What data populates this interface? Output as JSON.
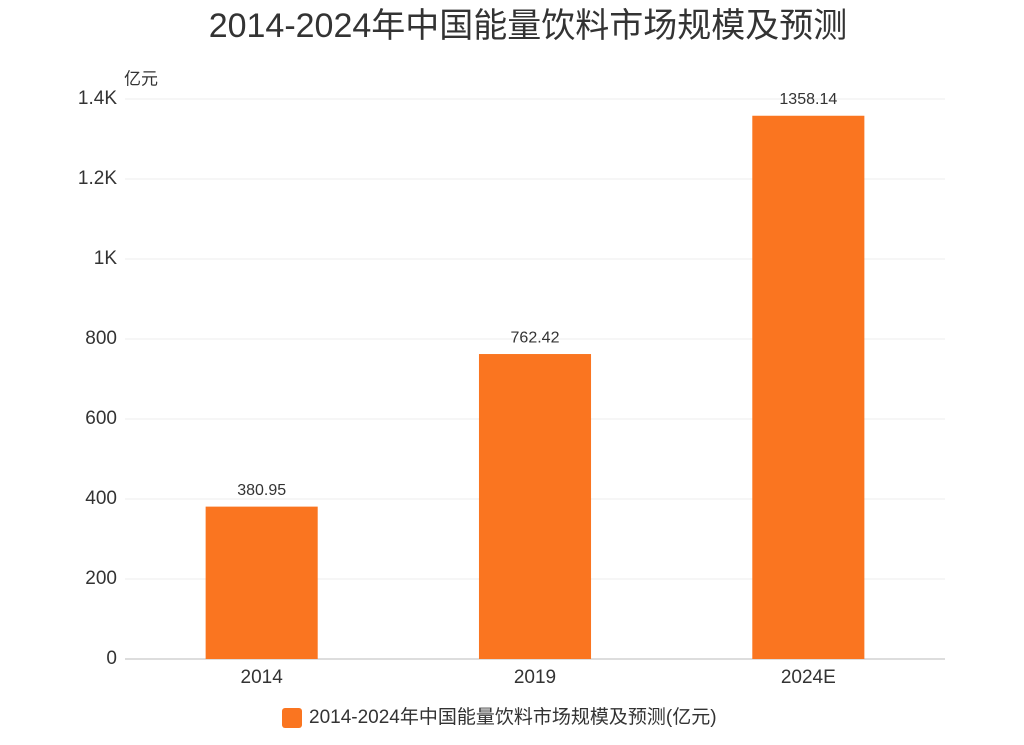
{
  "chart_data": {
    "type": "bar",
    "title": "2014-2024年中国能量饮料市场规模及预测",
    "y_label": "亿元",
    "categories": [
      "2014",
      "2019",
      "2024E"
    ],
    "series": [
      {
        "name": "2014-2024年中国能量饮料市场规模及预测(亿元)",
        "color": "#fa7520",
        "values": [
          380.95,
          762.42,
          1358.14
        ]
      }
    ],
    "ylim": [
      0,
      1400
    ],
    "yticks": [
      0,
      200,
      400,
      600,
      800,
      {
        "value": 1000,
        "label": "1K"
      },
      {
        "value": 1200,
        "label": "1.2K"
      },
      {
        "value": 1400,
        "label": "1.4K"
      }
    ],
    "grid": true,
    "legend": "bottom"
  }
}
